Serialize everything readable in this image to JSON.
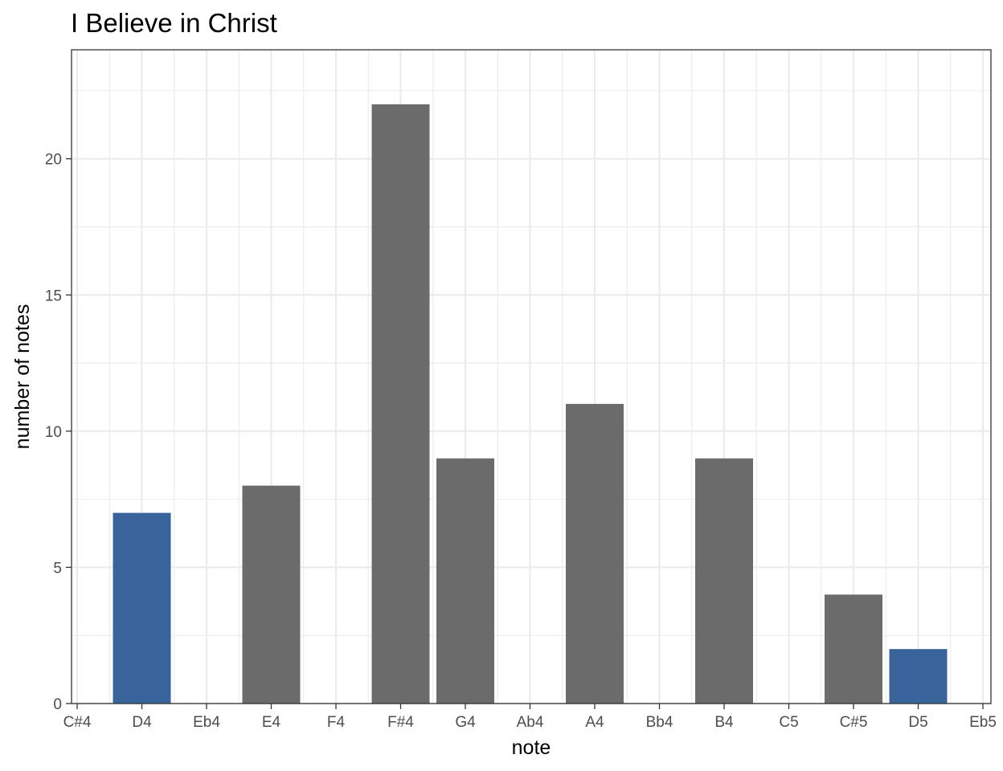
{
  "chart_data": {
    "type": "bar",
    "title": "I Believe in Christ",
    "xlabel": "note",
    "ylabel": "number of notes",
    "categories": [
      "C#4",
      "D4",
      "Eb4",
      "E4",
      "F4",
      "F#4",
      "G4",
      "Ab4",
      "A4",
      "Bb4",
      "B4",
      "C5",
      "C#5",
      "D5",
      "Eb5"
    ],
    "values": [
      0,
      7,
      0,
      8,
      0,
      22,
      9,
      0,
      11,
      0,
      9,
      0,
      4,
      2,
      0
    ],
    "highlighted": [
      "D4",
      "D5"
    ],
    "ylim": [
      0,
      24
    ],
    "yticks": [
      0,
      5,
      10,
      15,
      20
    ],
    "grid": true,
    "legend": "none",
    "colors": {
      "default": "#6b6b6b",
      "highlight": "#38649b"
    }
  }
}
